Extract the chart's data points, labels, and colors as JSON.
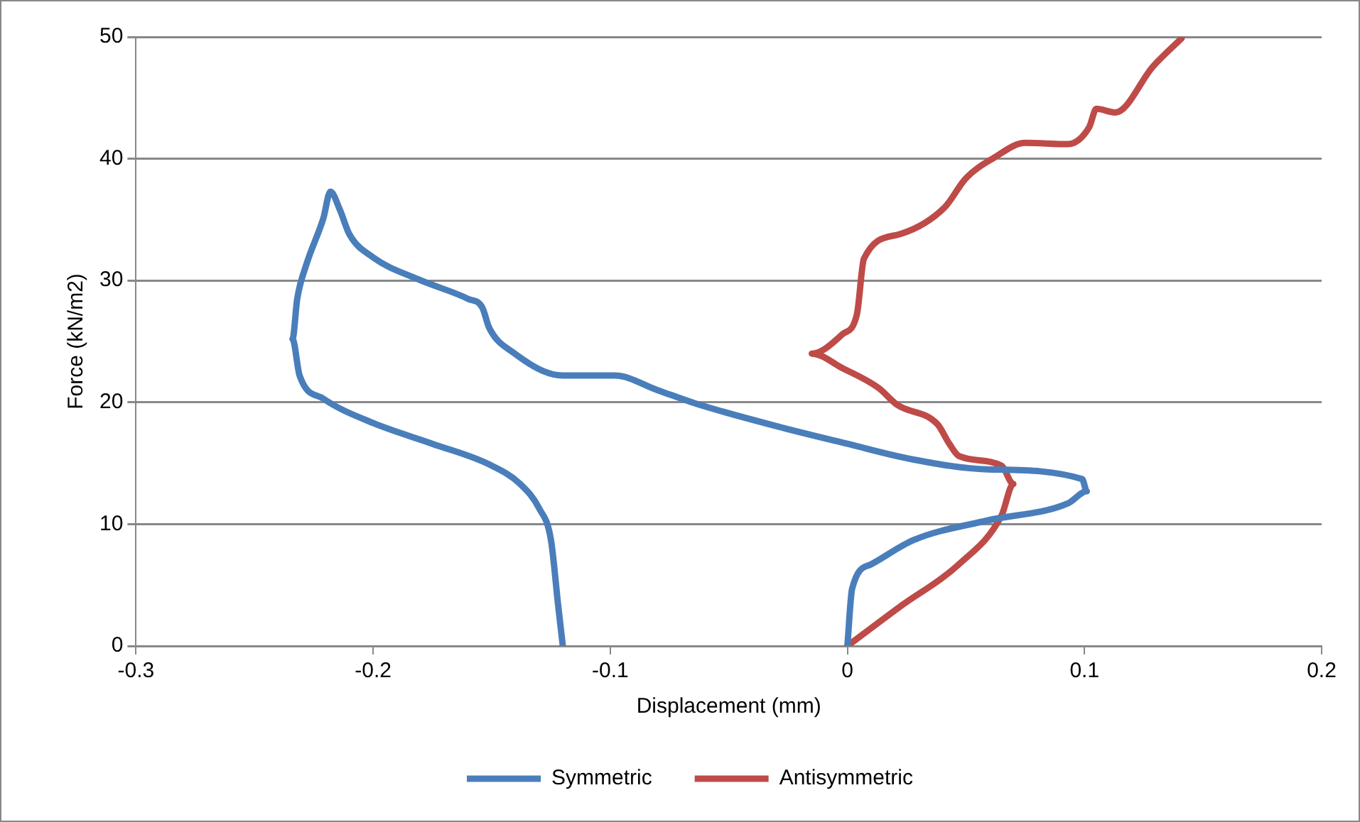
{
  "chart_data": {
    "type": "line",
    "xlabel": "Displacement (mm)",
    "ylabel": "Force (kN/m2)",
    "xlim": [
      -0.3,
      0.2
    ],
    "xticks": [
      -0.3,
      -0.2,
      -0.1,
      0,
      0.1,
      0.2
    ],
    "ylim": [
      0,
      50
    ],
    "yticks": [
      0,
      10,
      20,
      30,
      40,
      50
    ],
    "grid": "y",
    "legend": "bottom",
    "marker": "none",
    "line_style": "solid",
    "series": [
      {
        "name": "Symmetric",
        "color": "#4a7ebb",
        "x": [
          -0.12,
          -0.122,
          -0.125,
          -0.13,
          -0.138,
          -0.151,
          -0.175,
          -0.2,
          -0.221,
          -0.231,
          -0.234,
          -0.232,
          -0.228,
          -0.221,
          -0.218,
          -0.214,
          -0.21,
          -0.2,
          -0.181,
          -0.16,
          -0.154,
          -0.151,
          -0.141,
          -0.12,
          -0.098,
          -0.08,
          -0.064,
          -0.027,
          0,
          0.028,
          0.059,
          0.099,
          0.101,
          0.093,
          0.059,
          0.028,
          0.01,
          0.002,
          0
        ],
        "values": [
          0,
          3.4,
          8.7,
          11.3,
          13.3,
          14.9,
          16.6,
          18.3,
          20.3,
          22.2,
          25.2,
          28.5,
          31.4,
          35.1,
          37.3,
          35.8,
          33.8,
          31.9,
          30.1,
          28.5,
          27.8,
          26.1,
          24.1,
          22.2,
          22.2,
          21.0,
          19.9,
          17.9,
          16.6,
          15.3,
          14.5,
          13.7,
          12.7,
          11.7,
          10.3,
          8.7,
          6.7,
          4.7,
          0
        ]
      },
      {
        "name": "Antisymmetric",
        "color": "#be4b48",
        "x": [
          0,
          0.022,
          0.047,
          0.065,
          0.07,
          0.065,
          0.047,
          0.043,
          0.038,
          0.021,
          0.013,
          -0.002,
          -0.015,
          -0.002,
          0.004,
          0.007,
          0.022,
          0.041,
          0.05,
          0.062,
          0.075,
          0.093,
          0.102,
          0.105,
          0.113,
          0.129,
          0.141
        ],
        "values": [
          0,
          3.2,
          6.7,
          10.7,
          13.3,
          14.8,
          15.6,
          16.6,
          18.2,
          19.8,
          21.2,
          22.8,
          24.0,
          25.6,
          27.2,
          31.8,
          33.8,
          36.0,
          38.4,
          40.1,
          41.3,
          41.2,
          42.6,
          44.1,
          43.8,
          47.6,
          49.9
        ]
      }
    ]
  }
}
